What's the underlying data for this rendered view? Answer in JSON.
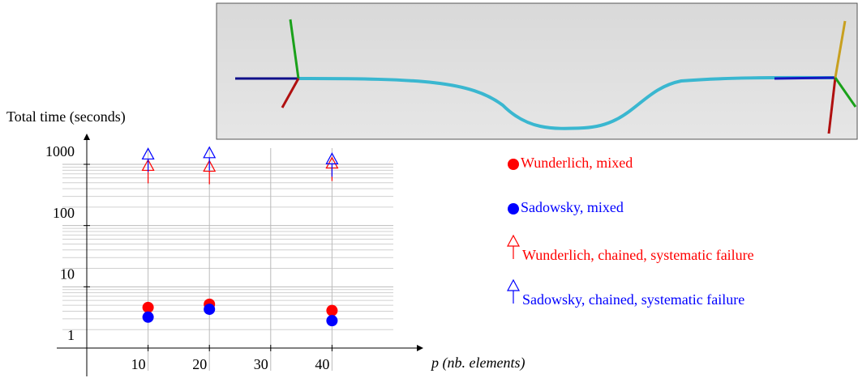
{
  "chart_data": {
    "type": "scatter",
    "y_label": "Total time (seconds)",
    "x_label": "p (nb. elements)",
    "log_y": true,
    "grid": true,
    "xlim": [
      0,
      50
    ],
    "xticks": [
      10,
      20,
      30,
      40
    ],
    "ylim": [
      1,
      1000
    ],
    "yticks": [
      1,
      10,
      100,
      1000
    ],
    "series": [
      {
        "name": "Wunderlich, mixed",
        "color": "#ff0000",
        "marker": "circle",
        "x": [
          10,
          20,
          40
        ],
        "values": [
          4.6,
          5.2,
          4.1
        ]
      },
      {
        "name": "Sadowsky, mixed",
        "color": "#0000ff",
        "marker": "circle",
        "x": [
          10,
          20,
          40
        ],
        "values": [
          3.2,
          4.3,
          2.8
        ]
      },
      {
        "name": "Wunderlich, chained, systematic failure",
        "color": "#ff0000",
        "marker": "triangle",
        "x": [
          10,
          20,
          40
        ],
        "values": [
          900,
          870,
          980
        ]
      },
      {
        "name": "Sadowsky, chained, systematic failure",
        "color": "#0000ff",
        "marker": "triangle",
        "x": [
          10,
          20,
          40
        ],
        "values": [
          1380,
          1450,
          1150
        ]
      }
    ]
  }
}
